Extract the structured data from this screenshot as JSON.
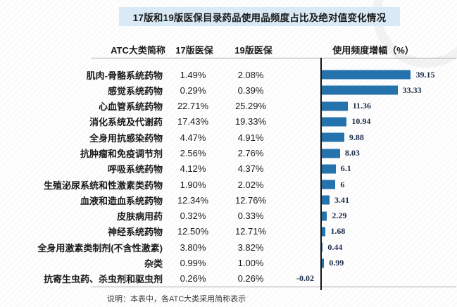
{
  "title": "17版和19版医保目录药品使用品频度占比及绝对值变化情况",
  "columns": {
    "atc": "ATC大类简称",
    "v17": "17版医保",
    "v19": "19版医保",
    "growth": "使用频度增幅（%）"
  },
  "footnote": "说明：本表中，各ATC大类采用简称表示",
  "colors": {
    "bar": "#2573ad",
    "title_bg": "#d9eaf6",
    "axis": "#141414",
    "rule": "#a8a8a8",
    "bar_label": "#1c2e49"
  },
  "rows": [
    {
      "name": "肌肉-骨骼系统药物",
      "v17": "1.49%",
      "v19": "2.08%",
      "growth": 39.15,
      "growth_label": "39.15"
    },
    {
      "name": "感觉系统药物",
      "v17": "0.29%",
      "v19": "0.39%",
      "growth": 33.33,
      "growth_label": "33.33"
    },
    {
      "name": "心血管系统药物",
      "v17": "22.71%",
      "v19": "25.29%",
      "growth": 11.36,
      "growth_label": "11.36"
    },
    {
      "name": "消化系统及代谢药",
      "v17": "17.43%",
      "v19": "19.33%",
      "growth": 10.94,
      "growth_label": "10.94"
    },
    {
      "name": "全身用抗感染药物",
      "v17": "4.47%",
      "v19": "4.91%",
      "growth": 9.88,
      "growth_label": "9.88"
    },
    {
      "name": "抗肿瘤和免疫调节剂",
      "v17": "2.56%",
      "v19": "2.76%",
      "growth": 8.03,
      "growth_label": "8.03"
    },
    {
      "name": "呼吸系统药物",
      "v17": "4.12%",
      "v19": "4.37%",
      "growth": 6.1,
      "growth_label": "6.1"
    },
    {
      "name": "生殖泌尿系统和性激素类药物",
      "v17": "1.90%",
      "v19": "2.02%",
      "growth": 6,
      "growth_label": "6"
    },
    {
      "name": "血液和造血系统药物",
      "v17": "12.34%",
      "v19": "12.76%",
      "growth": 3.41,
      "growth_label": "3.41"
    },
    {
      "name": "皮肤病用药",
      "v17": "0.32%",
      "v19": "0.33%",
      "growth": 2.29,
      "growth_label": "2.29"
    },
    {
      "name": "神经系统药物",
      "v17": "12.50%",
      "v19": "12.71%",
      "growth": 1.68,
      "growth_label": "1.68"
    },
    {
      "name": "全身用激素类制剂(不含性激素)",
      "v17": "3.80%",
      "v19": "3.82%",
      "growth": 0.44,
      "growth_label": "0.44"
    },
    {
      "name": "杂类",
      "v17": "0.99%",
      "v19": "1.00%",
      "growth": 0.99,
      "growth_label": "0.99"
    },
    {
      "name": "抗寄生虫药、杀虫剂和驱虫剂",
      "v17": "0.26%",
      "v19": "0.26%",
      "growth": -0.02,
      "growth_label": "-0.02"
    }
  ],
  "chart_data": {
    "type": "bar",
    "orientation": "horizontal",
    "title": "17版和19版医保目录药品使用品频度占比及绝对值变化情况",
    "categories": [
      "肌肉-骨骼系统药物",
      "感觉系统药物",
      "心血管系统药物",
      "消化系统及代谢药",
      "全身用抗感染药物",
      "抗肿瘤和免疫调节剂",
      "呼吸系统药物",
      "生殖泌尿系统和性激素类药物",
      "血液和造血系统药物",
      "皮肤病用药",
      "神经系统药物",
      "全身用激素类制剂(不含性激素)",
      "杂类",
      "抗寄生虫药、杀虫剂和驱虫剂"
    ],
    "series": [
      {
        "name": "17版医保",
        "values": [
          "1.49%",
          "0.29%",
          "22.71%",
          "17.43%",
          "4.47%",
          "2.56%",
          "4.12%",
          "1.90%",
          "12.34%",
          "0.32%",
          "12.50%",
          "3.80%",
          "0.99%",
          "0.26%"
        ]
      },
      {
        "name": "19版医保",
        "values": [
          "2.08%",
          "0.39%",
          "25.29%",
          "19.33%",
          "4.91%",
          "2.76%",
          "4.37%",
          "2.02%",
          "12.76%",
          "0.33%",
          "12.71%",
          "3.82%",
          "1.00%",
          "0.26%"
        ]
      },
      {
        "name": "使用频度增幅（%）",
        "values": [
          39.15,
          33.33,
          11.36,
          10.94,
          9.88,
          8.03,
          6.1,
          6,
          3.41,
          2.29,
          1.68,
          0.44,
          0.99,
          -0.02
        ]
      }
    ],
    "xlabel": "使用频度增幅（%）",
    "ylabel": "ATC大类简称",
    "xlim": [
      -1,
      41
    ],
    "grid": false,
    "legend": false,
    "note": "说明：本表中，各ATC大类采用简称表示"
  }
}
